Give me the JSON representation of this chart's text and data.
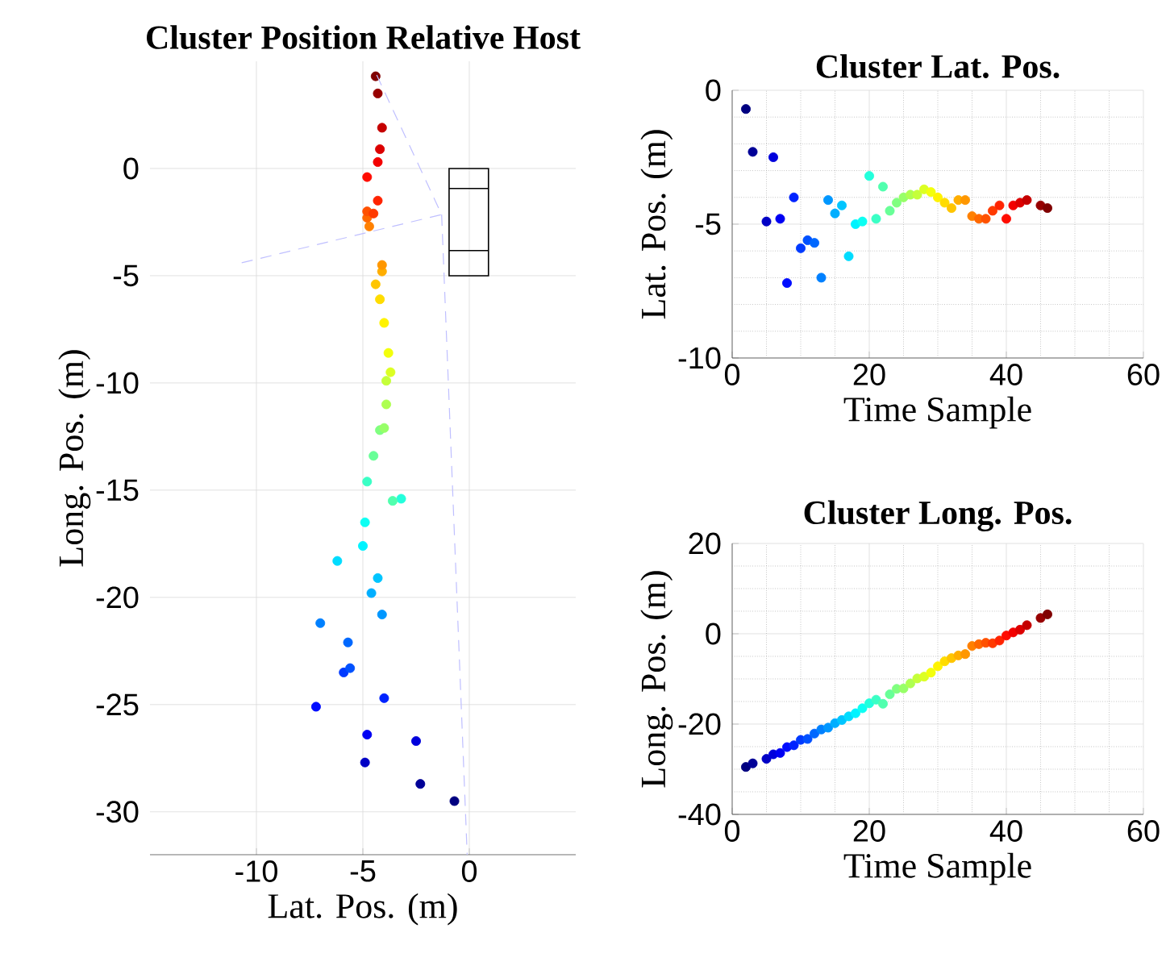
{
  "chart_data": [
    {
      "type": "scatter",
      "title": "Cluster Position Relative Host",
      "xlabel": "Lat. Pos. (m)",
      "ylabel": "Long. Pos. (m)",
      "x": [
        -0.7,
        -2.3,
        -4.9,
        -2.5,
        -4.8,
        -7.2,
        -4.0,
        -5.9,
        -5.6,
        -5.7,
        -7.0,
        -4.1,
        -4.6,
        -4.3,
        -6.2,
        -5.0,
        -4.9,
        -3.2,
        -4.8,
        -3.6,
        -4.5,
        -4.2,
        -4.0,
        -3.9,
        -3.9,
        -3.7,
        -3.8,
        -4.0,
        -4.2,
        -4.4,
        -4.1,
        -4.1,
        -4.7,
        -4.8,
        -4.8,
        -4.5,
        -4.3,
        -4.8,
        -4.3,
        -4.2,
        -4.1,
        -4.3,
        -4.4
      ],
      "values": [
        -29.5,
        -28.7,
        -27.7,
        -26.7,
        -26.4,
        -25.1,
        -24.7,
        -23.5,
        -23.3,
        -22.1,
        -21.2,
        -20.8,
        -19.8,
        -19.1,
        -18.3,
        -17.6,
        -16.5,
        -15.4,
        -14.6,
        -15.5,
        -13.4,
        -12.2,
        -12.1,
        -11.0,
        -9.9,
        -9.5,
        -8.6,
        -7.2,
        -6.1,
        -5.4,
        -4.8,
        -4.5,
        -2.7,
        -2.3,
        -2.0,
        -2.1,
        -1.5,
        -0.4,
        0.3,
        0.9,
        1.9,
        3.5,
        4.3
      ],
      "colors": [
        "#000080",
        "#000097",
        "#0000c5",
        "#0000dc",
        "#0000f3",
        "#000cff",
        "#0023ff",
        "#003aff",
        "#0051ff",
        "#0068ff",
        "#0080ff",
        "#0097ff",
        "#00aeff",
        "#00c5ff",
        "#00dcff",
        "#00f3ff",
        "#0cfff3",
        "#23ffdc",
        "#3affc5",
        "#51ffae",
        "#68ff97",
        "#80ff80",
        "#97ff68",
        "#aeff51",
        "#c5ff3a",
        "#dcff23",
        "#f3ff0c",
        "#fff300",
        "#ffdc00",
        "#ffc500",
        "#ffae00",
        "#ff9700",
        "#ff8000",
        "#ff6800",
        "#ff5100",
        "#ff3a00",
        "#ff2300",
        "#ff0c00",
        "#f30000",
        "#dc0000",
        "#c50000",
        "#970000",
        "#800000"
      ],
      "xlim": [
        -15,
        5
      ],
      "xticks": [
        -10,
        -5,
        0
      ],
      "ylim": [
        -32,
        5
      ],
      "yticks": [
        -30,
        -25,
        -20,
        -15,
        -10,
        -5,
        0
      ],
      "grid": true
    },
    {
      "type": "scatter",
      "title": "Cluster Lat. Pos.",
      "xlabel": "Time Sample",
      "ylabel": "Lat. Pos. (m)",
      "x": [
        2,
        3,
        5,
        6,
        7,
        8,
        9,
        10,
        11,
        12,
        13,
        14,
        15,
        16,
        17,
        18,
        19,
        20,
        21,
        22,
        23,
        24,
        25,
        26,
        27,
        28,
        29,
        30,
        31,
        32,
        33,
        34,
        35,
        36,
        37,
        38,
        39,
        40,
        41,
        42,
        43,
        45,
        46
      ],
      "values": [
        -0.7,
        -2.3,
        -4.9,
        -2.5,
        -4.8,
        -7.2,
        -4.0,
        -5.9,
        -5.6,
        -5.7,
        -7.0,
        -4.1,
        -4.6,
        -4.3,
        -6.2,
        -5.0,
        -4.9,
        -3.2,
        -4.8,
        -3.6,
        -4.5,
        -4.2,
        -4.0,
        -3.9,
        -3.9,
        -3.7,
        -3.8,
        -4.0,
        -4.2,
        -4.4,
        -4.1,
        -4.1,
        -4.7,
        -4.8,
        -4.8,
        -4.5,
        -4.3,
        -4.8,
        -4.3,
        -4.2,
        -4.1,
        -4.3,
        -4.4
      ],
      "colors": [
        "#000080",
        "#000097",
        "#0000c5",
        "#0000dc",
        "#0000f3",
        "#000cff",
        "#0023ff",
        "#003aff",
        "#0051ff",
        "#0068ff",
        "#0080ff",
        "#0097ff",
        "#00aeff",
        "#00c5ff",
        "#00dcff",
        "#00f3ff",
        "#0cfff3",
        "#23ffdc",
        "#3affc5",
        "#51ffae",
        "#68ff97",
        "#80ff80",
        "#97ff68",
        "#aeff51",
        "#c5ff3a",
        "#dcff23",
        "#f3ff0c",
        "#fff300",
        "#ffdc00",
        "#ffc500",
        "#ffae00",
        "#ff9700",
        "#ff8000",
        "#ff6800",
        "#ff5100",
        "#ff3a00",
        "#ff2300",
        "#ff0c00",
        "#f30000",
        "#dc0000",
        "#c50000",
        "#970000",
        "#800000"
      ],
      "xlim": [
        0,
        60
      ],
      "xticks": [
        0,
        {
          "value": 5,
          "label": null
        },
        {
          "value": 10,
          "label": null
        },
        {
          "value": 15,
          "label": null
        },
        20,
        {
          "value": 25,
          "label": null
        },
        {
          "value": 30,
          "label": null
        },
        {
          "value": 35,
          "label": null
        },
        40,
        {
          "value": 45,
          "label": null
        },
        {
          "value": 50,
          "label": null
        },
        {
          "value": 55,
          "label": null
        },
        60
      ],
      "ylim": [
        -10,
        0
      ],
      "yticks": [
        -10,
        {
          "value": -9,
          "label": null
        },
        {
          "value": -8,
          "label": null
        },
        {
          "value": -7,
          "label": null
        },
        {
          "value": -6,
          "label": null
        },
        -5,
        {
          "value": -4,
          "label": null
        },
        {
          "value": -3,
          "label": null
        },
        {
          "value": -2,
          "label": null
        },
        {
          "value": -1,
          "label": null
        },
        0
      ],
      "grid": true
    },
    {
      "type": "scatter",
      "title": "Cluster Long. Pos.",
      "xlabel": "Time Sample",
      "ylabel": "Long. Pos. (m)",
      "x": [
        2,
        3,
        5,
        6,
        7,
        8,
        9,
        10,
        11,
        12,
        13,
        14,
        15,
        16,
        17,
        18,
        19,
        20,
        21,
        22,
        23,
        24,
        25,
        26,
        27,
        28,
        29,
        30,
        31,
        32,
        33,
        34,
        35,
        36,
        37,
        38,
        39,
        40,
        41,
        42,
        43,
        45,
        46
      ],
      "values": [
        -29.5,
        -28.7,
        -27.7,
        -26.7,
        -26.4,
        -25.1,
        -24.7,
        -23.5,
        -23.3,
        -22.1,
        -21.2,
        -20.8,
        -19.8,
        -19.1,
        -18.3,
        -17.6,
        -16.5,
        -15.4,
        -14.6,
        -15.5,
        -13.4,
        -12.2,
        -12.1,
        -11.0,
        -9.9,
        -9.5,
        -8.6,
        -7.2,
        -6.1,
        -5.4,
        -4.8,
        -4.5,
        -2.7,
        -2.3,
        -2.0,
        -2.1,
        -1.5,
        -0.4,
        0.3,
        0.9,
        1.9,
        3.5,
        4.3
      ],
      "colors": [
        "#000080",
        "#000097",
        "#0000c5",
        "#0000dc",
        "#0000f3",
        "#000cff",
        "#0023ff",
        "#003aff",
        "#0051ff",
        "#0068ff",
        "#0080ff",
        "#0097ff",
        "#00aeff",
        "#00c5ff",
        "#00dcff",
        "#00f3ff",
        "#0cfff3",
        "#23ffdc",
        "#3affc5",
        "#51ffae",
        "#68ff97",
        "#80ff80",
        "#97ff68",
        "#aeff51",
        "#c5ff3a",
        "#dcff23",
        "#f3ff0c",
        "#fff300",
        "#ffdc00",
        "#ffc500",
        "#ffae00",
        "#ff9700",
        "#ff8000",
        "#ff6800",
        "#ff5100",
        "#ff3a00",
        "#ff2300",
        "#ff0c00",
        "#f30000",
        "#dc0000",
        "#c50000",
        "#970000",
        "#800000"
      ],
      "xlim": [
        0,
        60
      ],
      "xticks": [
        0,
        {
          "value": 5,
          "label": null
        },
        {
          "value": 10,
          "label": null
        },
        {
          "value": 15,
          "label": null
        },
        20,
        {
          "value": 25,
          "label": null
        },
        {
          "value": 30,
          "label": null
        },
        {
          "value": 35,
          "label": null
        },
        40,
        {
          "value": 45,
          "label": null
        },
        {
          "value": 50,
          "label": null
        },
        {
          "value": 55,
          "label": null
        },
        60
      ],
      "ylim": [
        -40,
        20
      ],
      "yticks": [
        -40,
        {
          "value": -35,
          "label": null
        },
        {
          "value": -30,
          "label": null
        },
        {
          "value": -25,
          "label": null
        },
        -20,
        {
          "value": -15,
          "label": null
        },
        {
          "value": -10,
          "label": null
        },
        {
          "value": -5,
          "label": null
        },
        0,
        {
          "value": 5,
          "label": null
        },
        {
          "value": 10,
          "label": null
        },
        {
          "value": 15,
          "label": null
        },
        20
      ],
      "grid": true
    }
  ]
}
